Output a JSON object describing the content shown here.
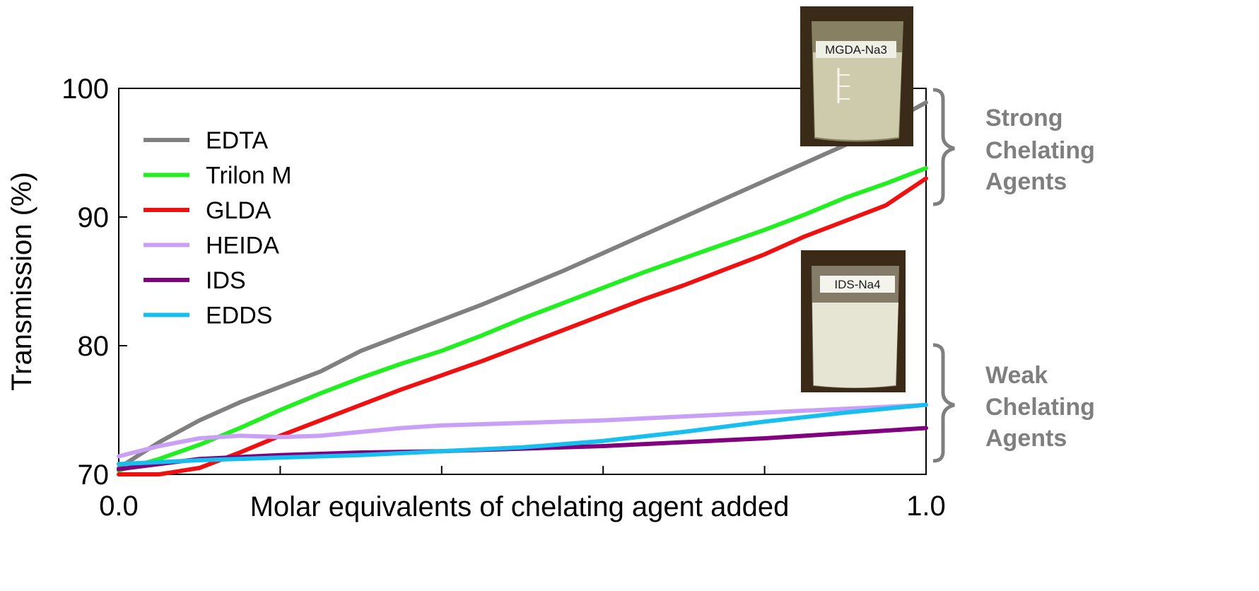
{
  "chart_data": {
    "type": "line",
    "title": "",
    "xlabel": "Molar equivalents of chelating agent added",
    "ylabel": "Transmission (%)",
    "xlim": [
      0.0,
      1.0
    ],
    "ylim": [
      70,
      100
    ],
    "x_tick_labels": [
      "0.0",
      "1.0"
    ],
    "x_ticks": [
      0.0,
      0.2,
      0.4,
      0.6,
      0.8,
      1.0
    ],
    "y_ticks": [
      70,
      80,
      90,
      100
    ],
    "grid": false,
    "legend_position": "top-left",
    "series": [
      {
        "name": "EDTA",
        "color": "#808080",
        "points": [
          [
            0.0,
            70.5
          ],
          [
            0.05,
            72.5
          ],
          [
            0.1,
            74.2
          ],
          [
            0.15,
            75.6
          ],
          [
            0.2,
            76.8
          ],
          [
            0.25,
            78.0
          ],
          [
            0.3,
            79.6
          ],
          [
            0.35,
            80.8
          ],
          [
            0.4,
            82.0
          ],
          [
            0.45,
            83.2
          ],
          [
            0.5,
            84.5
          ],
          [
            0.55,
            85.8
          ],
          [
            0.6,
            87.2
          ],
          [
            0.65,
            88.6
          ],
          [
            0.7,
            90.0
          ],
          [
            0.75,
            91.4
          ],
          [
            0.8,
            92.8
          ],
          [
            0.85,
            94.2
          ],
          [
            0.9,
            95.6
          ],
          [
            0.95,
            97.2
          ],
          [
            1.0,
            98.9
          ]
        ]
      },
      {
        "name": "Trilon M",
        "color": "#22ee22",
        "points": [
          [
            0.0,
            70.3
          ],
          [
            0.05,
            71.2
          ],
          [
            0.1,
            72.3
          ],
          [
            0.15,
            73.6
          ],
          [
            0.2,
            75.0
          ],
          [
            0.25,
            76.3
          ],
          [
            0.3,
            77.5
          ],
          [
            0.35,
            78.6
          ],
          [
            0.4,
            79.6
          ],
          [
            0.45,
            80.8
          ],
          [
            0.5,
            82.1
          ],
          [
            0.55,
            83.3
          ],
          [
            0.6,
            84.5
          ],
          [
            0.65,
            85.7
          ],
          [
            0.7,
            86.8
          ],
          [
            0.75,
            87.9
          ],
          [
            0.8,
            89.0
          ],
          [
            0.85,
            90.2
          ],
          [
            0.9,
            91.5
          ],
          [
            0.95,
            92.6
          ],
          [
            1.0,
            93.8
          ]
        ]
      },
      {
        "name": "GLDA",
        "color": "#ee1111",
        "points": [
          [
            0.0,
            70.0
          ],
          [
            0.05,
            70.0
          ],
          [
            0.1,
            70.5
          ],
          [
            0.15,
            71.7
          ],
          [
            0.2,
            73.0
          ],
          [
            0.25,
            74.2
          ],
          [
            0.3,
            75.4
          ],
          [
            0.35,
            76.6
          ],
          [
            0.4,
            77.7
          ],
          [
            0.45,
            78.8
          ],
          [
            0.5,
            80.0
          ],
          [
            0.55,
            81.2
          ],
          [
            0.6,
            82.4
          ],
          [
            0.65,
            83.6
          ],
          [
            0.7,
            84.7
          ],
          [
            0.75,
            85.9
          ],
          [
            0.8,
            87.1
          ],
          [
            0.85,
            88.5
          ],
          [
            0.9,
            89.7
          ],
          [
            0.95,
            90.9
          ],
          [
            1.0,
            93.0
          ]
        ]
      },
      {
        "name": "HEIDA",
        "color": "#c9a0f5",
        "points": [
          [
            0.0,
            71.4
          ],
          [
            0.05,
            72.2
          ],
          [
            0.1,
            72.8
          ],
          [
            0.15,
            73.0
          ],
          [
            0.2,
            72.9
          ],
          [
            0.25,
            73.0
          ],
          [
            0.3,
            73.3
          ],
          [
            0.35,
            73.6
          ],
          [
            0.4,
            73.8
          ],
          [
            0.5,
            74.0
          ],
          [
            0.6,
            74.2
          ],
          [
            0.7,
            74.5
          ],
          [
            0.8,
            74.8
          ],
          [
            0.9,
            75.1
          ],
          [
            1.0,
            75.4
          ]
        ]
      },
      {
        "name": "IDS",
        "color": "#800080",
        "points": [
          [
            0.0,
            70.4
          ],
          [
            0.1,
            71.2
          ],
          [
            0.2,
            71.5
          ],
          [
            0.3,
            71.7
          ],
          [
            0.4,
            71.8
          ],
          [
            0.5,
            72.0
          ],
          [
            0.6,
            72.2
          ],
          [
            0.7,
            72.5
          ],
          [
            0.8,
            72.8
          ],
          [
            0.9,
            73.2
          ],
          [
            1.0,
            73.6
          ]
        ]
      },
      {
        "name": "EDDS",
        "color": "#18bfee",
        "points": [
          [
            0.0,
            70.8
          ],
          [
            0.1,
            71.1
          ],
          [
            0.2,
            71.3
          ],
          [
            0.3,
            71.5
          ],
          [
            0.4,
            71.8
          ],
          [
            0.5,
            72.1
          ],
          [
            0.6,
            72.6
          ],
          [
            0.7,
            73.3
          ],
          [
            0.8,
            74.1
          ],
          [
            0.9,
            74.8
          ],
          [
            1.0,
            75.4
          ]
        ]
      }
    ],
    "annotations": {
      "strong_group": [
        "Strong",
        "Chelating",
        "Agents"
      ],
      "weak_group": [
        "Weak",
        "Chelating",
        "Agents"
      ],
      "beaker_top_label": "MGDA-Na3",
      "beaker_bottom_label": "IDS-Na4",
      "bracket_color": "#7f7f7f"
    }
  }
}
